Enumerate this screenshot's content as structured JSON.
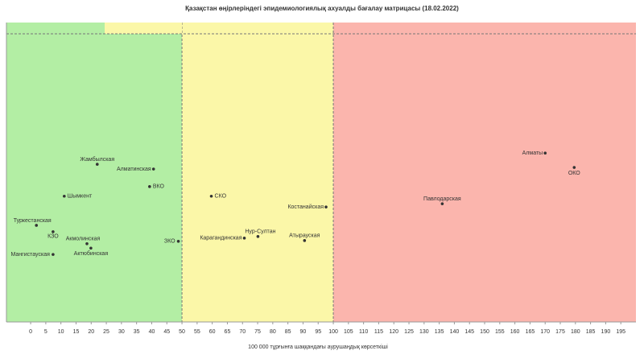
{
  "chart_data": {
    "type": "scatter",
    "title": "Қазақстан өңірлеріндегі эпидемиологиялық ахуалды бағалау матрицасы  (18.02.2022)",
    "x_label": "100 000 тұрғынға шаққандағы аурушаңдық көрсеткіші",
    "point_labels": [
      "Жамбылская",
      "Алматинская",
      "ВКО",
      "Шымкент",
      "Туркестанская",
      "КЗО",
      "Акмолинская",
      "Актюбинская",
      "Мангистауская",
      "ЗКО",
      "СКО",
      "Карагандинская",
      "Нур-Султан",
      "Костанайская",
      "Атырауская",
      "Павлодарская",
      "Алматы",
      "ОКО"
    ],
    "x": [
      22,
      40.6,
      39.3,
      11.1,
      1.9,
      7.4,
      18.6,
      19.9,
      7.4,
      48.8,
      59.7,
      70.6,
      75.1,
      97.6,
      90.5,
      136,
      170,
      179.6
    ],
    "values": [
      3.95,
      3.83,
      3.39,
      3.15,
      2.42,
      2.26,
      1.96,
      1.85,
      1.69,
      2.02,
      3.15,
      2.1,
      2.14,
      2.88,
      2.04,
      2.96,
      4.23,
      3.87
    ],
    "color": "#333333",
    "xlim": [
      -8,
      200
    ],
    "ylim": [
      0,
      7.5
    ],
    "xticks": [
      0,
      5,
      10,
      15,
      20,
      25,
      30,
      35,
      40,
      45,
      50,
      55,
      60,
      65,
      70,
      75,
      80,
      85,
      90,
      95,
      100,
      105,
      110,
      115,
      120,
      125,
      130,
      135,
      140,
      145,
      150,
      155,
      160,
      165,
      170,
      175,
      180,
      185,
      190,
      195
    ],
    "zones": [
      {
        "from": -8,
        "to": 50,
        "color": "#b3eea4"
      },
      {
        "from": 50,
        "to": 100,
        "color": "#fbf7a8"
      },
      {
        "from": 100,
        "to": 200,
        "color": "#fbb5ad"
      }
    ]
  }
}
